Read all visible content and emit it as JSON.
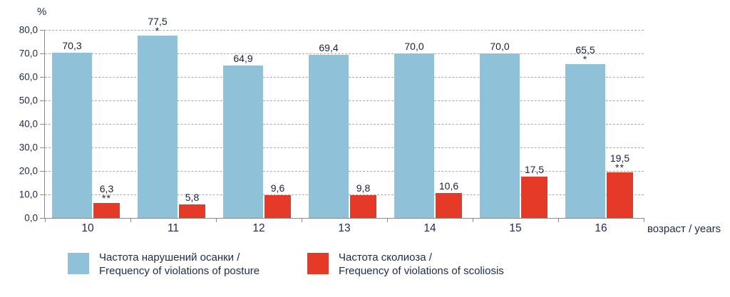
{
  "chart_data": {
    "type": "bar",
    "title": "",
    "categories": [
      "10",
      "11",
      "12",
      "13",
      "14",
      "15",
      "16"
    ],
    "x_axis_label": "возраст / years",
    "y_axis_label": "%",
    "ylim": [
      0,
      80
    ],
    "ytick_step": 10,
    "ytick_labels": [
      "0,0",
      "10,0",
      "20,0",
      "30,0",
      "40,0",
      "50,0",
      "60,0",
      "70,0",
      "80,0"
    ],
    "grid": "dashed-horizontal",
    "legend_position": "bottom",
    "series": [
      {
        "name": "Частота нарушений осанки / Frequency of violations of posture",
        "color": "#8fc1d9",
        "values": [
          70.3,
          77.5,
          64.9,
          69.4,
          70.0,
          70.0,
          65.5
        ],
        "labels": [
          "70,3",
          "77,5",
          "64,9",
          "69,4",
          "70,0",
          "70,0",
          "65,5"
        ],
        "annotations": [
          "",
          "*",
          "",
          "",
          "",
          "",
          "*"
        ]
      },
      {
        "name": "Частота сколиоза / Frequency of violations of scoliosis",
        "color": "#e53a28",
        "values": [
          6.3,
          5.8,
          9.6,
          9.8,
          10.6,
          17.5,
          19.5
        ],
        "labels": [
          "6,3",
          "5,8",
          "9,6",
          "9,8",
          "10,6",
          "17,5",
          "19,5"
        ],
        "annotations": [
          "**",
          "",
          "",
          "",
          "",
          "",
          "**"
        ]
      }
    ],
    "legend": [
      {
        "line1": "Частота нарушений осанки /",
        "line2": "Frequency of violations of posture",
        "color": "#8fc1d9"
      },
      {
        "line1": "Частота сколиоза /",
        "line2": "Frequency of violations of scoliosis",
        "color": "#e53a28"
      }
    ]
  }
}
